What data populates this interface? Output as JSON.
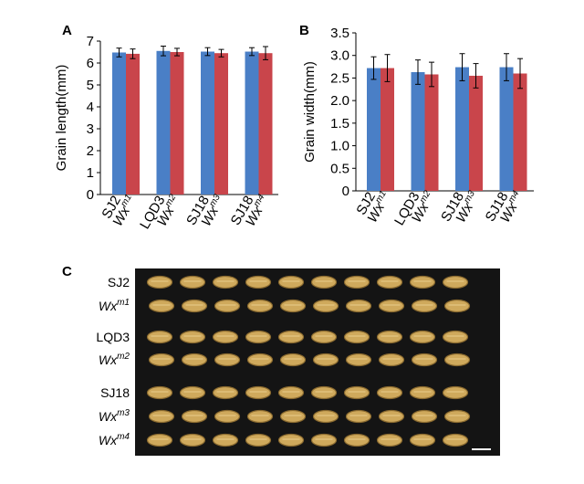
{
  "panels": {
    "a": "A",
    "b": "B",
    "c": "C"
  },
  "colors": {
    "series1": "#4a7fc6",
    "series2": "#c9454b",
    "photo_bg": "#141414",
    "grain": "#cfa95c",
    "grain_edge": "#8a6a2f"
  },
  "chart_data": [
    {
      "type": "bar",
      "panel": "A",
      "ylabel": "Grain length(mm)",
      "ylim": [
        0,
        7
      ],
      "yticks": [
        0,
        1,
        2,
        3,
        4,
        5,
        6,
        7
      ],
      "categories": [
        {
          "left": "SJ2",
          "right_base": "Wx",
          "right_sup": "m1"
        },
        {
          "left": "LQD3",
          "right_base": "Wx",
          "right_sup": "m2"
        },
        {
          "left": "SJ18",
          "right_base": "Wx",
          "right_sup": "m3"
        },
        {
          "left": "SJ18",
          "right_base": "Wx",
          "right_sup": "m4"
        }
      ],
      "series": [
        {
          "values": [
            6.48,
            6.55,
            6.52,
            6.52
          ],
          "errors": [
            0.2,
            0.22,
            0.18,
            0.18
          ]
        },
        {
          "values": [
            6.42,
            6.5,
            6.45,
            6.45
          ],
          "errors": [
            0.22,
            0.17,
            0.17,
            0.3
          ]
        }
      ],
      "grid": false,
      "legend": "none"
    },
    {
      "type": "bar",
      "panel": "B",
      "ylabel": "Grain width(mm)",
      "ylim": [
        0,
        3.5
      ],
      "yticks": [
        "0",
        "0.5",
        "1.0",
        "1.5",
        "2.0",
        "2.5",
        "3.0",
        "3.5"
      ],
      "categories": [
        {
          "left": "SJ2",
          "right_base": "Wx",
          "right_sup": "m1"
        },
        {
          "left": "LQD3",
          "right_base": "Wx",
          "right_sup": "m2"
        },
        {
          "left": "SJ18",
          "right_base": "Wx",
          "right_sup": "m3"
        },
        {
          "left": "SJ18",
          "right_base": "Wx",
          "right_sup": "m4"
        }
      ],
      "series": [
        {
          "values": [
            2.72,
            2.63,
            2.74,
            2.74
          ],
          "errors": [
            0.25,
            0.27,
            0.3,
            0.3
          ]
        },
        {
          "values": [
            2.72,
            2.58,
            2.55,
            2.6
          ],
          "errors": [
            0.3,
            0.27,
            0.27,
            0.33
          ]
        }
      ],
      "grid": false,
      "legend": "none"
    }
  ],
  "photo": {
    "rows": [
      {
        "label": "SJ2",
        "italic": false,
        "sup": "",
        "count": 10
      },
      {
        "label": "Wx",
        "italic": true,
        "sup": "m1",
        "count": 10
      },
      {
        "label": "LQD3",
        "italic": false,
        "sup": "",
        "count": 10
      },
      {
        "label": "Wx",
        "italic": true,
        "sup": "m2",
        "count": 10
      },
      {
        "label": "SJ18",
        "italic": false,
        "sup": "",
        "count": 10
      },
      {
        "label": "Wx",
        "italic": true,
        "sup": "m3",
        "count": 10
      },
      {
        "label": "Wx",
        "italic": true,
        "sup": "m4",
        "count": 10
      }
    ]
  }
}
